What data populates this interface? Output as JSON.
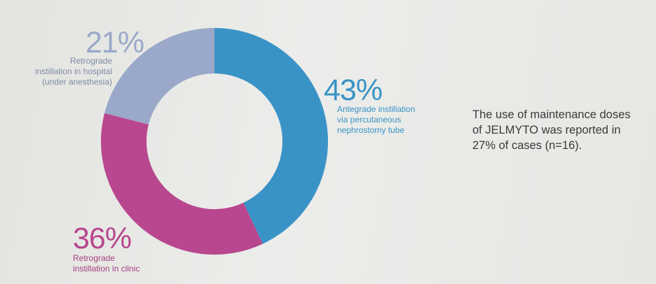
{
  "chart_data": {
    "type": "pie",
    "categories": [
      "Antegrade instillation\nvia percutaneous\nnephrostomy tube",
      "Retrograde\ninstillation in clinic",
      "Retrograde\ninstillation in hospital\n(under anesthesia)"
    ],
    "values": [
      43,
      36,
      21
    ],
    "value_labels": [
      "43%",
      "36%",
      "21%"
    ],
    "colors": [
      "#3a93c6",
      "#b8478f",
      "#9aa8c9"
    ],
    "annotation": "The use of maintenance doses\nof JELMYTO was reported in\n27% of cases (n=16)."
  }
}
